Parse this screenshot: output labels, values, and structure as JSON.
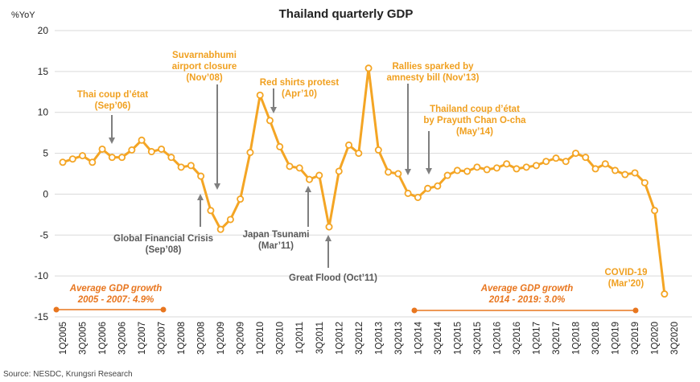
{
  "chart_data": {
    "type": "line",
    "title": "Thailand quarterly GDP",
    "y_axis_label": "%YoY",
    "source": "Source: NESDC, Krungsri Research",
    "categories": [
      "1Q2005",
      null,
      "3Q2005",
      null,
      "1Q2006",
      null,
      "3Q2006",
      null,
      "1Q2007",
      null,
      "3Q2007",
      null,
      "1Q2008",
      null,
      "3Q2008",
      null,
      "1Q2009",
      null,
      "3Q2009",
      null,
      "1Q2010",
      null,
      "3Q2010",
      null,
      "1Q2011",
      null,
      "3Q2011",
      null,
      "1Q2012",
      null,
      "3Q2012",
      null,
      "1Q2013",
      null,
      "3Q2013",
      null,
      "1Q2014",
      null,
      "3Q2014",
      null,
      "1Q2015",
      null,
      "3Q2015",
      null,
      "1Q2016",
      null,
      "3Q2016",
      null,
      "1Q2017",
      null,
      "3Q2017",
      null,
      "1Q2018",
      null,
      "3Q2018",
      null,
      "1Q2019",
      null,
      "3Q2019",
      null,
      "1Q2020",
      null,
      "3Q2020"
    ],
    "series": [
      {
        "name": "GDP",
        "color": "#f4a524",
        "values": [
          3.9,
          4.3,
          4.7,
          3.9,
          5.5,
          4.5,
          4.5,
          5.4,
          6.6,
          5.2,
          5.5,
          4.5,
          3.3,
          3.5,
          2.2,
          -2.0,
          -4.3,
          -3.1,
          -0.6,
          5.1,
          12.1,
          9.0,
          5.8,
          3.4,
          3.2,
          1.8,
          2.3,
          -4.0,
          2.8,
          6.0,
          5.0,
          15.4,
          5.4,
          2.7,
          2.5,
          0.1,
          -0.4,
          0.7,
          1.0,
          2.3,
          2.9,
          2.8,
          3.3,
          3.0,
          3.2,
          3.7,
          3.1,
          3.3,
          3.5,
          4.0,
          4.4,
          4.0,
          5.0,
          4.5,
          3.1,
          3.7,
          2.9,
          2.4,
          2.6,
          1.4,
          -2.0,
          -12.2,
          null
        ]
      }
    ],
    "ylim": [
      -15,
      20
    ],
    "yticks": [
      -15,
      -10,
      -5,
      0,
      5,
      10,
      15,
      20
    ],
    "grid": true,
    "annotations": [
      {
        "lines": [
          "Thai coup d’état",
          "(Sep’06)"
        ]
      },
      {
        "lines": [
          "Suvarnabhumi",
          "airport closure",
          "(Nov’08)"
        ]
      },
      {
        "lines": [
          "Red shirts protest",
          "(Apr’10)"
        ]
      },
      {
        "lines": [
          "Rallies sparked by",
          "amnesty bill (Nov’13)"
        ]
      },
      {
        "lines": [
          "Thailand coup d’état",
          "by Prayuth Chan O-cha",
          "(May’14)"
        ]
      },
      {
        "lines": [
          "Global Financial Crisis",
          "(Sep’08)"
        ]
      },
      {
        "lines": [
          "Japan Tsunami",
          "(Mar’11)"
        ]
      },
      {
        "lines": [
          "Great Flood (Oct’11)"
        ]
      },
      {
        "lines": [
          "COVID-19",
          "(Mar’20)"
        ]
      },
      {
        "lines": [
          "Average GDP growth",
          "2005 - 2007: 4.9%"
        ]
      },
      {
        "lines": [
          "Average GDP growth",
          "2014 - 2019: 3.0%"
        ]
      }
    ]
  }
}
